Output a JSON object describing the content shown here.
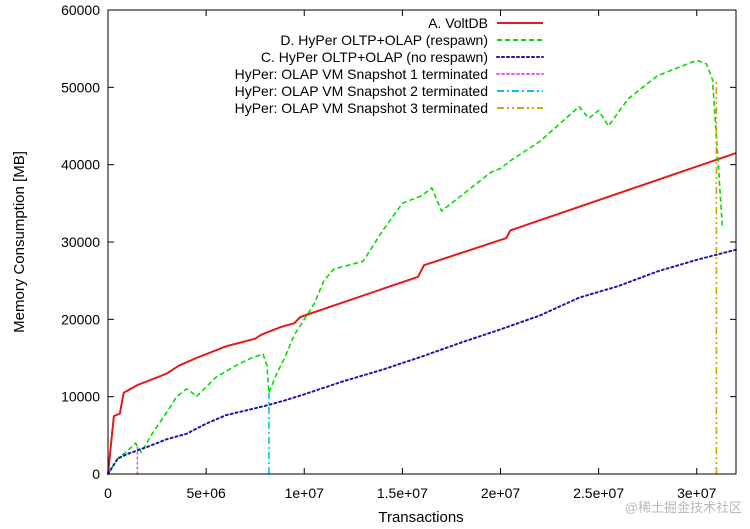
{
  "chart_data": {
    "type": "line",
    "title": "",
    "xlabel": "Transactions",
    "ylabel": "Memory Consumption [MB]",
    "xlim": [
      0,
      32000000
    ],
    "ylim": [
      0,
      60000
    ],
    "x_ticks": [
      0,
      5000000,
      10000000,
      15000000,
      20000000,
      25000000,
      30000000
    ],
    "x_tick_labels": [
      "0",
      "5e+06",
      "1e+07",
      "1.5e+07",
      "2e+07",
      "2.5e+07",
      "3e+07"
    ],
    "y_ticks": [
      0,
      10000,
      20000,
      30000,
      40000,
      50000,
      60000
    ],
    "y_tick_labels": [
      "0",
      "10000",
      "20000",
      "30000",
      "40000",
      "50000",
      "60000"
    ],
    "grid": false,
    "legend_position": "top-right",
    "series": [
      {
        "name": "A. VoltDB",
        "color": "#e41a1c",
        "style": "solid",
        "x": [
          0,
          200000,
          300000,
          600000,
          800000,
          1500000,
          3000000,
          3600000,
          4500000,
          6000000,
          7500000,
          7800000,
          8800000,
          9500000,
          9800000,
          15800000,
          16100000,
          20300000,
          20500000,
          32000000
        ],
        "y": [
          0,
          5000,
          7500,
          7800,
          10500,
          11500,
          13000,
          14000,
          15000,
          16500,
          17500,
          18000,
          19000,
          19500,
          20300,
          25500,
          27000,
          30500,
          31500,
          41500
        ]
      },
      {
        "name": "D. HyPer OLTP+OLAP (respawn)",
        "color": "#00dd00",
        "style": "dashed",
        "x": [
          0,
          500000,
          1000000,
          1400000,
          1700000,
          2200000,
          3000000,
          3500000,
          4000000,
          4300000,
          4500000,
          5500000,
          6500000,
          7300000,
          7900000,
          8100000,
          8200000,
          8600000,
          9000000,
          9500000,
          10500000,
          11000000,
          11500000,
          13000000,
          14000000,
          15000000,
          16000000,
          16500000,
          17000000,
          17500000,
          18500000,
          19500000,
          20000000,
          20500000,
          22000000,
          24000000,
          24500000,
          25000000,
          25500000,
          26500000,
          28000000,
          29000000,
          30000000,
          30500000,
          30800000,
          31100000,
          31300000
        ],
        "y": [
          0,
          2000,
          3000,
          4000,
          2800,
          5000,
          8000,
          10000,
          11000,
          10500,
          10000,
          12500,
          14000,
          15000,
          15500,
          14000,
          10500,
          13000,
          15000,
          18000,
          22000,
          25000,
          26500,
          27500,
          31500,
          35000,
          36000,
          37000,
          34000,
          35000,
          37000,
          39000,
          39500,
          40500,
          43000,
          47500,
          46000,
          47000,
          45000,
          48500,
          51500,
          52500,
          53500,
          53000,
          51000,
          40000,
          32000
        ]
      },
      {
        "name": "C. HyPer OLTP+OLAP (no respawn)",
        "color": "#1a1aa8",
        "style": "dotted",
        "x": [
          0,
          500000,
          1000000,
          2000000,
          3000000,
          4000000,
          5000000,
          6000000,
          7000000,
          8000000,
          9000000,
          10000000,
          12000000,
          14000000,
          16000000,
          18000000,
          20000000,
          22000000,
          24000000,
          26000000,
          28000000,
          30000000,
          32000000
        ],
        "y": [
          0,
          2000,
          2600,
          3500,
          4500,
          5200,
          6500,
          7600,
          8200,
          8800,
          9500,
          10300,
          12000,
          13500,
          15200,
          17000,
          18700,
          20500,
          22800,
          24300,
          26200,
          27700,
          29000
        ]
      },
      {
        "name": "HyPer: OLAP VM Snapshot 1 terminated",
        "color": "#e060e0",
        "style": "dotted",
        "x": [
          1500000,
          1500000
        ],
        "y": [
          0,
          3500
        ]
      },
      {
        "name": "HyPer: OLAP VM Snapshot 2 terminated",
        "color": "#00c8e0",
        "style": "dashdot",
        "x": [
          8200000,
          8200000
        ],
        "y": [
          0,
          10500
        ]
      },
      {
        "name": "HyPer: OLAP VM Snapshot 3 terminated",
        "color": "#e0a000",
        "style": "dashdotdot",
        "x": [
          31000000,
          31000000
        ],
        "y": [
          0,
          51000
        ]
      }
    ]
  },
  "watermark": "@稀土掘金技术社区"
}
